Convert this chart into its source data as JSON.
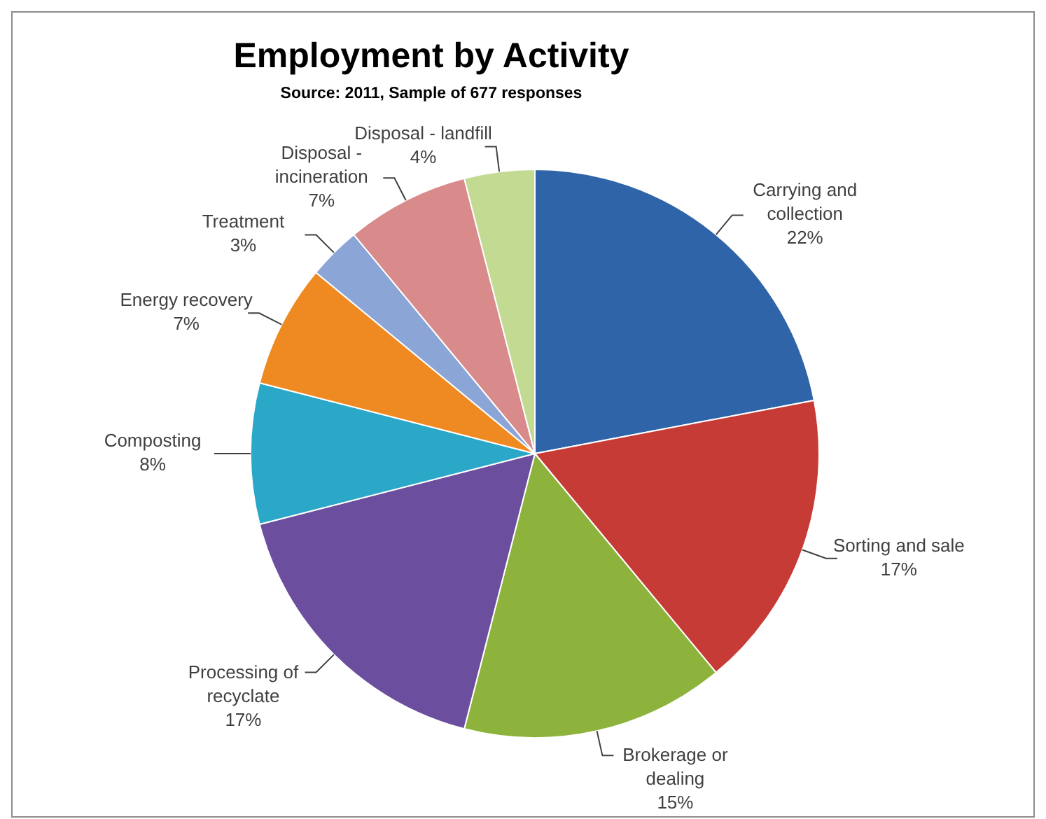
{
  "chart_data": {
    "type": "pie",
    "title": "Employment by Activity",
    "subtitle": "Source: 2011, Sample of 677 responses",
    "categories": [
      "Carrying and collection",
      "Sorting and sale",
      "Brokerage or dealing",
      "Processing of recyclate",
      "Composting",
      "Energy recovery",
      "Treatment",
      "Disposal - incineration",
      "Disposal - landfill"
    ],
    "values": [
      22,
      17,
      15,
      17,
      8,
      7,
      3,
      7,
      4
    ],
    "colors": [
      "#2f65a8",
      "#c63b35",
      "#8db33c",
      "#6b4f9e",
      "#2ba7c8",
      "#ef8a22",
      "#8aa5d6",
      "#d98a8a",
      "#c3da92"
    ],
    "value_labels": [
      "22%",
      "17%",
      "15%",
      "17%",
      "8%",
      "7%",
      "3%",
      "7%",
      "4%"
    ]
  }
}
